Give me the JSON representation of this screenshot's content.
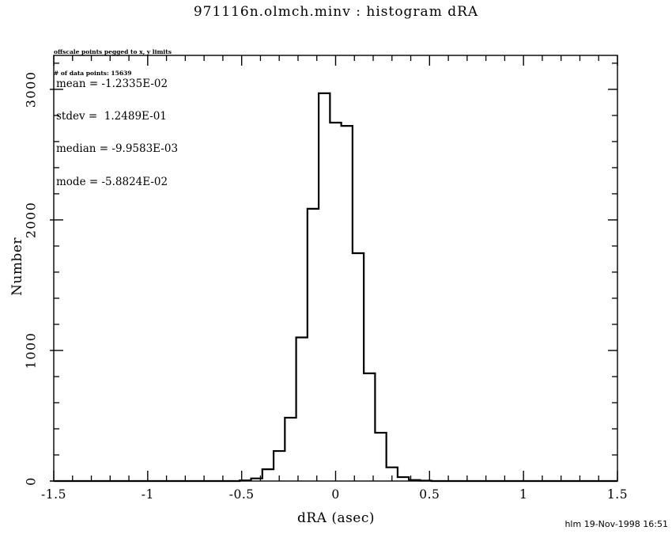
{
  "header": {
    "title": "971116n.olmch.minv : histogram dRA"
  },
  "notes": {
    "line1": "offscale points pegged to x, y limits",
    "line2": "# of data points: 15639"
  },
  "stats": {
    "mean": "mean = -1.2335E-02",
    "stdev": "stdev =  1.2489E-01",
    "median": "median = -9.9583E-03",
    "mode": "mode = -5.8824E-02"
  },
  "footer": {
    "credit": "hlm 19-Nov-1998 16:51"
  },
  "colors": {
    "foreground": "#000000",
    "background": "#ffffff"
  },
  "chart_data": {
    "type": "bar",
    "style": "step-histogram-outline",
    "title": "971116n.olmch.minv : histogram dRA",
    "xlabel": "dRA (asec)",
    "ylabel": "Number",
    "n_points_label": "15639",
    "bin_width": 0.06,
    "bin_centers": [
      -0.48,
      -0.42,
      -0.36,
      -0.3,
      -0.24,
      -0.18,
      -0.12,
      -0.06,
      0.0,
      0.06,
      0.12,
      0.18,
      0.24,
      0.3,
      0.36,
      0.42,
      0.48
    ],
    "values": [
      5,
      20,
      90,
      230,
      485,
      1100,
      2085,
      2970,
      2745,
      2720,
      1745,
      825,
      370,
      105,
      30,
      8,
      3
    ],
    "xlim": [
      -1.5,
      1.5
    ],
    "ylim": [
      0,
      3260
    ],
    "x_major_ticks": [
      -1.5,
      -1,
      -0.5,
      0,
      0.5,
      1,
      1.5
    ],
    "x_tick_labels": [
      "-1.5",
      "-1",
      "-0.5",
      "0",
      "0.5",
      "1",
      "1.5"
    ],
    "x_minor_step": 0.1,
    "y_major_ticks": [
      0,
      1000,
      2000,
      3000
    ],
    "y_tick_labels": [
      "0",
      "1000",
      "2000",
      "3000"
    ],
    "y_minor_step": 200,
    "grid": false,
    "legend": "none"
  }
}
